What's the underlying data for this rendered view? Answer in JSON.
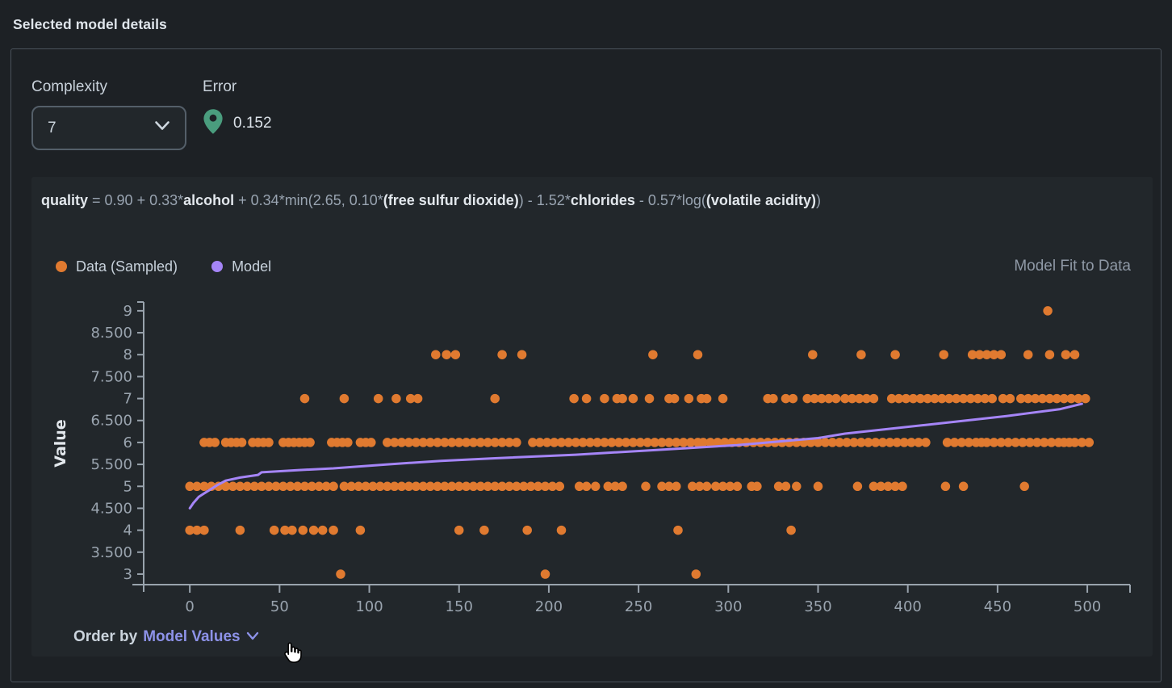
{
  "page": {
    "title": "Selected model details"
  },
  "controls": {
    "complexity": {
      "label": "Complexity",
      "value": "7"
    },
    "error": {
      "label": "Error",
      "value": "0.152",
      "pin_color": "#4a9d7e"
    }
  },
  "formula": {
    "segments": [
      {
        "text": "quality",
        "bold": true
      },
      {
        "text": " = 0.90 + 0.33*",
        "bold": false
      },
      {
        "text": "alcohol",
        "bold": true
      },
      {
        "text": " + 0.34*min(2.65, 0.10*",
        "bold": false
      },
      {
        "text": "(free sulfur dioxide)",
        "bold": true
      },
      {
        "text": ") - 1.52*",
        "bold": false
      },
      {
        "text": "chlorides",
        "bold": true
      },
      {
        "text": " - 0.57*log(",
        "bold": false
      },
      {
        "text": "(volatile acidity)",
        "bold": true
      },
      {
        "text": ")",
        "bold": false
      }
    ]
  },
  "order_by": {
    "prefix": "Order by",
    "value": "Model Values",
    "link_color": "#8d92e8"
  },
  "chart_data": {
    "type": "scatter",
    "title": "Model Fit to Data",
    "xlabel": "",
    "ylabel": "Value",
    "grid": false,
    "legend_position": "top-left",
    "xlim": [
      -25.7,
      523.8
    ],
    "ylim": [
      2.76,
      9.2
    ],
    "x_ticks": [
      0,
      50,
      100,
      150,
      200,
      250,
      300,
      350,
      400,
      450,
      500
    ],
    "y_ticks": [
      3,
      3.5,
      4,
      4.5,
      5,
      5.5,
      6,
      6.5,
      7,
      7.5,
      8,
      8.5,
      9
    ],
    "y_tick_labels": [
      "3",
      "3.500",
      "4",
      "4.500",
      "5",
      "5.500",
      "6",
      "6.500",
      "7",
      "7.500",
      "8",
      "8.500",
      "9"
    ],
    "legend": [
      {
        "label": "Data (Sampled)",
        "color": "#e07a30"
      },
      {
        "label": "Model",
        "color": "#a585f7"
      }
    ],
    "series": [
      {
        "name": "Data (Sampled)",
        "type": "scatter",
        "color": "#e07a30",
        "marker_size": 11.5,
        "points_by_value": {
          "3": [
            84,
            198,
            282
          ],
          "4": [
            0,
            4,
            8,
            28,
            47,
            53,
            57,
            63,
            69,
            74,
            80,
            95,
            150,
            164,
            188,
            207,
            272,
            335
          ],
          "5": [
            0,
            4,
            8,
            12,
            16,
            20,
            24,
            28,
            32,
            36,
            40,
            44,
            48,
            52,
            56,
            60,
            64,
            68,
            72,
            76,
            80,
            86,
            90,
            94,
            98,
            102,
            106,
            110,
            114,
            118,
            122,
            126,
            130,
            134,
            138,
            142,
            146,
            150,
            154,
            158,
            162,
            166,
            170,
            174,
            178,
            182,
            186,
            190,
            194,
            198,
            202,
            206,
            217,
            221,
            226,
            233,
            237,
            241,
            254,
            263,
            267,
            271,
            280,
            284,
            288,
            293,
            297,
            301,
            305,
            313,
            316,
            328,
            332,
            338,
            350,
            372,
            381,
            385,
            389,
            393,
            397,
            421,
            431,
            465
          ],
          "6": [
            8,
            11,
            14,
            20,
            23,
            26,
            29,
            35,
            38,
            41,
            44,
            52,
            55,
            58,
            61,
            64,
            67,
            79,
            82,
            85,
            88,
            95,
            98,
            101,
            110,
            114,
            118,
            122,
            126,
            130,
            134,
            138,
            142,
            146,
            150,
            154,
            158,
            162,
            166,
            170,
            174,
            178,
            182,
            191,
            195,
            199,
            203,
            207,
            211,
            215,
            219,
            223,
            227,
            231,
            235,
            239,
            243,
            247,
            251,
            255,
            259,
            263,
            267,
            271,
            275,
            279,
            283,
            286,
            290,
            294,
            298,
            302,
            306,
            310,
            314,
            318,
            322,
            326,
            330,
            334,
            338,
            342,
            346,
            350,
            354,
            358,
            362,
            366,
            370,
            374,
            378,
            382,
            386,
            390,
            394,
            398,
            402,
            406,
            410,
            422,
            426,
            430,
            434,
            438,
            441,
            444,
            448,
            452,
            456,
            460,
            464,
            468,
            472,
            476,
            480,
            484,
            487,
            490,
            493,
            497,
            501
          ],
          "7": [
            64,
            86,
            105,
            115,
            123,
            127,
            170,
            214,
            221,
            231,
            238,
            241,
            247,
            256,
            267,
            270,
            278,
            285,
            288,
            297,
            322,
            325,
            332,
            336,
            344,
            348,
            352,
            356,
            360,
            365,
            369,
            373,
            377,
            381,
            391,
            395,
            399,
            403,
            407,
            411,
            415,
            419,
            423,
            427,
            431,
            435,
            439,
            443,
            447,
            453,
            457,
            463,
            467,
            471,
            475,
            479,
            483,
            487,
            491,
            495,
            499
          ],
          "8": [
            137,
            143,
            148,
            174,
            185,
            258,
            283,
            347,
            374,
            393,
            420,
            436,
            440,
            444,
            448,
            452,
            467,
            479,
            488,
            493
          ],
          "9": [
            478
          ]
        }
      },
      {
        "name": "Model",
        "type": "line",
        "color": "#a585f7",
        "width": 3,
        "points": [
          [
            0,
            4.5
          ],
          [
            2,
            4.62
          ],
          [
            5,
            4.76
          ],
          [
            8,
            4.84
          ],
          [
            10,
            4.89
          ],
          [
            15,
            5.02
          ],
          [
            20,
            5.13
          ],
          [
            28,
            5.2
          ],
          [
            38,
            5.26
          ],
          [
            40,
            5.32
          ],
          [
            60,
            5.37
          ],
          [
            80,
            5.41
          ],
          [
            110,
            5.5
          ],
          [
            140,
            5.58
          ],
          [
            170,
            5.64
          ],
          [
            215,
            5.72
          ],
          [
            260,
            5.83
          ],
          [
            305,
            5.94
          ],
          [
            350,
            6.1
          ],
          [
            365,
            6.2
          ],
          [
            410,
            6.4
          ],
          [
            455,
            6.6
          ],
          [
            485,
            6.76
          ],
          [
            497,
            6.88
          ]
        ]
      }
    ]
  }
}
